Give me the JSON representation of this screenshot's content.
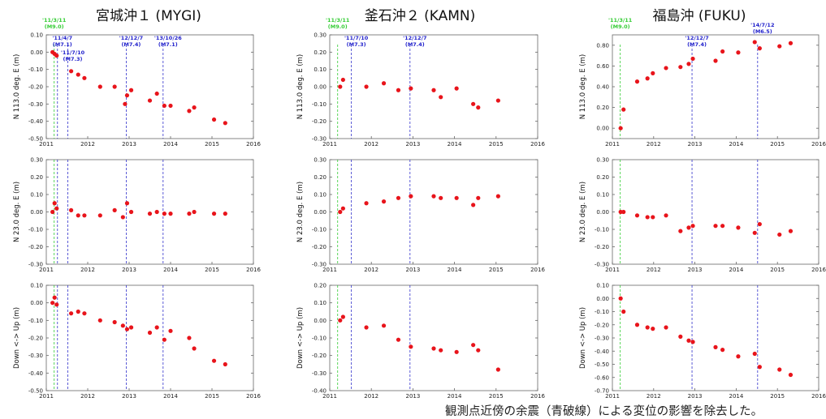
{
  "chart_data": [
    {
      "station": "宮城沖１ (MYGI)",
      "type": "scatter",
      "x_ticks": [
        "2011",
        "2012",
        "2013",
        "2014",
        "2015",
        "2016"
      ],
      "xlim": [
        2011,
        2016
      ],
      "marker_color": "#e8141b",
      "events": [
        {
          "x": 2011.19,
          "date": "'11/3/11",
          "mag": "(M9.0)",
          "color": "green"
        },
        {
          "x": 2011.27,
          "date": "'11/4/7",
          "mag": "(M7.1)",
          "color": "blue"
        },
        {
          "x": 2011.52,
          "date": "'11/7/10",
          "mag": "(M7.3)",
          "color": "blue"
        },
        {
          "x": 2012.93,
          "date": "'12/12/7",
          "mag": "(M7.4)",
          "color": "blue"
        },
        {
          "x": 2013.82,
          "date": "'13/10/26",
          "mag": "(M7.1)",
          "color": "blue"
        }
      ],
      "panels": [
        {
          "ylabel": "N 113.0 deg. E (m)",
          "ylim": [
            -0.5,
            0.1
          ],
          "y_ticks": [
            "0.10",
            "0.00",
            "-0.10",
            "-0.20",
            "-0.30",
            "-0.40",
            "-0.50"
          ],
          "points": [
            [
              2011.15,
              0.0
            ],
            [
              2011.2,
              -0.01
            ],
            [
              2011.25,
              -0.02
            ],
            [
              2011.6,
              -0.11
            ],
            [
              2011.77,
              -0.13
            ],
            [
              2011.92,
              -0.15
            ],
            [
              2012.3,
              -0.2
            ],
            [
              2012.65,
              -0.2
            ],
            [
              2012.9,
              -0.3
            ],
            [
              2012.95,
              -0.25
            ],
            [
              2013.05,
              -0.22
            ],
            [
              2013.5,
              -0.28
            ],
            [
              2013.67,
              -0.24
            ],
            [
              2013.85,
              -0.31
            ],
            [
              2014.0,
              -0.31
            ],
            [
              2014.45,
              -0.34
            ],
            [
              2014.57,
              -0.32
            ],
            [
              2015.05,
              -0.39
            ],
            [
              2015.32,
              -0.41
            ]
          ]
        },
        {
          "ylabel": "N 23.0 deg. E (m)",
          "ylim": [
            -0.3,
            0.3
          ],
          "y_ticks": [
            "0.30",
            "0.20",
            "0.10",
            "0.00",
            "-0.10",
            "-0.20",
            "-0.30"
          ],
          "points": [
            [
              2011.15,
              0.0
            ],
            [
              2011.2,
              0.05
            ],
            [
              2011.25,
              0.02
            ],
            [
              2011.6,
              0.01
            ],
            [
              2011.77,
              -0.02
            ],
            [
              2011.92,
              -0.02
            ],
            [
              2012.3,
              -0.02
            ],
            [
              2012.65,
              0.01
            ],
            [
              2012.85,
              -0.03
            ],
            [
              2012.95,
              0.05
            ],
            [
              2013.05,
              0.0
            ],
            [
              2013.5,
              -0.01
            ],
            [
              2013.67,
              0.0
            ],
            [
              2013.85,
              -0.01
            ],
            [
              2014.0,
              -0.01
            ],
            [
              2014.45,
              -0.01
            ],
            [
              2014.57,
              0.0
            ],
            [
              2015.05,
              -0.01
            ],
            [
              2015.32,
              -0.01
            ]
          ]
        },
        {
          "ylabel": "Down <-> Up (m)",
          "ylim": [
            -0.5,
            0.1
          ],
          "y_ticks": [
            "0.10",
            "0.00",
            "-0.10",
            "-0.20",
            "-0.30",
            "-0.40",
            "-0.50"
          ],
          "points": [
            [
              2011.15,
              0.0
            ],
            [
              2011.2,
              0.03
            ],
            [
              2011.25,
              -0.01
            ],
            [
              2011.6,
              -0.06
            ],
            [
              2011.77,
              -0.05
            ],
            [
              2011.92,
              -0.06
            ],
            [
              2012.3,
              -0.1
            ],
            [
              2012.65,
              -0.11
            ],
            [
              2012.85,
              -0.13
            ],
            [
              2012.95,
              -0.15
            ],
            [
              2013.05,
              -0.14
            ],
            [
              2013.5,
              -0.17
            ],
            [
              2013.67,
              -0.14
            ],
            [
              2013.85,
              -0.21
            ],
            [
              2014.0,
              -0.16
            ],
            [
              2014.45,
              -0.2
            ],
            [
              2014.57,
              -0.26
            ],
            [
              2015.05,
              -0.33
            ],
            [
              2015.32,
              -0.35
            ]
          ]
        }
      ]
    },
    {
      "station": "釜石沖２ (KAMN)",
      "type": "scatter",
      "x_ticks": [
        "2011",
        "2012",
        "2013",
        "2014",
        "2015",
        "2016"
      ],
      "xlim": [
        2011,
        2016
      ],
      "marker_color": "#e8141b",
      "events": [
        {
          "x": 2011.19,
          "date": "'11/3/11",
          "mag": "(M9.0)",
          "color": "green"
        },
        {
          "x": 2011.52,
          "date": "'11/7/10",
          "mag": "(M7.3)",
          "color": "blue"
        },
        {
          "x": 2012.93,
          "date": "'12/12/7",
          "mag": "(M7.4)",
          "color": "blue"
        }
      ],
      "panels": [
        {
          "ylabel": "N 113.0 deg. E (m)",
          "ylim": [
            -0.3,
            0.3
          ],
          "y_ticks": [
            "0.30",
            "0.20",
            "0.10",
            "0.00",
            "-0.10",
            "-0.20",
            "-0.30"
          ],
          "points": [
            [
              2011.25,
              0.0
            ],
            [
              2011.32,
              0.04
            ],
            [
              2011.88,
              0.0
            ],
            [
              2012.3,
              0.02
            ],
            [
              2012.65,
              -0.02
            ],
            [
              2012.95,
              -0.01
            ],
            [
              2013.5,
              -0.02
            ],
            [
              2013.67,
              -0.06
            ],
            [
              2014.05,
              -0.01
            ],
            [
              2014.45,
              -0.1
            ],
            [
              2014.57,
              -0.12
            ],
            [
              2015.05,
              -0.08
            ]
          ]
        },
        {
          "ylabel": "N 23.0 deg. E (m)",
          "ylim": [
            -0.3,
            0.3
          ],
          "y_ticks": [
            "0.30",
            "0.20",
            "0.10",
            "0.00",
            "-0.10",
            "-0.20",
            "-0.30"
          ],
          "points": [
            [
              2011.25,
              0.0
            ],
            [
              2011.32,
              0.02
            ],
            [
              2011.88,
              0.05
            ],
            [
              2012.3,
              0.06
            ],
            [
              2012.65,
              0.08
            ],
            [
              2012.95,
              0.09
            ],
            [
              2013.5,
              0.09
            ],
            [
              2013.67,
              0.08
            ],
            [
              2014.05,
              0.08
            ],
            [
              2014.45,
              0.04
            ],
            [
              2014.57,
              0.08
            ],
            [
              2015.05,
              0.09
            ]
          ]
        },
        {
          "ylabel": "Down <-> Up (m)",
          "ylim": [
            -0.4,
            0.2
          ],
          "y_ticks": [
            "0.20",
            "0.10",
            "0.00",
            "-0.10",
            "-0.20",
            "-0.30",
            "-0.40"
          ],
          "points": [
            [
              2011.25,
              0.0
            ],
            [
              2011.32,
              0.02
            ],
            [
              2011.88,
              -0.04
            ],
            [
              2012.3,
              -0.03
            ],
            [
              2012.65,
              -0.11
            ],
            [
              2012.95,
              -0.15
            ],
            [
              2013.5,
              -0.16
            ],
            [
              2013.67,
              -0.17
            ],
            [
              2014.05,
              -0.18
            ],
            [
              2014.45,
              -0.14
            ],
            [
              2014.57,
              -0.17
            ],
            [
              2015.05,
              -0.28
            ]
          ]
        }
      ]
    },
    {
      "station": "福島沖 (FUKU)",
      "type": "scatter",
      "x_ticks": [
        "2011",
        "2012",
        "2013",
        "2014",
        "2015",
        "2016"
      ],
      "xlim": [
        2011,
        2016
      ],
      "marker_color": "#e8141b",
      "events": [
        {
          "x": 2011.19,
          "date": "'11/3/11",
          "mag": "(M9.0)",
          "color": "green"
        },
        {
          "x": 2012.93,
          "date": "'12/12/7",
          "mag": "(M7.4)",
          "color": "blue"
        },
        {
          "x": 2014.52,
          "date": "'14/7/12",
          "mag": "(M6.5)",
          "color": "blue"
        }
      ],
      "panels": [
        {
          "ylabel": "N 113.0 deg. E (m)",
          "ylim": [
            -0.1,
            0.9
          ],
          "y_ticks": [
            "0.80",
            "0.60",
            "0.40",
            "0.20",
            "0.00"
          ],
          "y_tick_values": [
            0.8,
            0.6,
            0.4,
            0.2,
            0.0
          ],
          "points": [
            [
              2011.2,
              0.0
            ],
            [
              2011.27,
              0.18
            ],
            [
              2011.6,
              0.45
            ],
            [
              2011.85,
              0.48
            ],
            [
              2011.98,
              0.53
            ],
            [
              2012.3,
              0.58
            ],
            [
              2012.65,
              0.59
            ],
            [
              2012.85,
              0.62
            ],
            [
              2012.95,
              0.67
            ],
            [
              2013.5,
              0.65
            ],
            [
              2013.67,
              0.74
            ],
            [
              2014.05,
              0.73
            ],
            [
              2014.45,
              0.83
            ],
            [
              2014.57,
              0.77
            ],
            [
              2015.05,
              0.79
            ],
            [
              2015.32,
              0.82
            ]
          ]
        },
        {
          "ylabel": "N 23.0 deg. E (m)",
          "ylim": [
            -0.3,
            0.3
          ],
          "y_ticks": [
            "0.30",
            "0.20",
            "0.10",
            "0.00",
            "-0.10",
            "-0.20",
            "-0.30"
          ],
          "points": [
            [
              2011.2,
              0.0
            ],
            [
              2011.27,
              0.0
            ],
            [
              2011.6,
              -0.02
            ],
            [
              2011.85,
              -0.03
            ],
            [
              2011.98,
              -0.03
            ],
            [
              2012.3,
              -0.02
            ],
            [
              2012.65,
              -0.11
            ],
            [
              2012.85,
              -0.09
            ],
            [
              2012.95,
              -0.08
            ],
            [
              2013.5,
              -0.08
            ],
            [
              2013.67,
              -0.08
            ],
            [
              2014.05,
              -0.09
            ],
            [
              2014.45,
              -0.12
            ],
            [
              2014.57,
              -0.07
            ],
            [
              2015.05,
              -0.13
            ],
            [
              2015.32,
              -0.11
            ]
          ]
        },
        {
          "ylabel": "Down <-> Up (m)",
          "ylim": [
            -0.7,
            0.1
          ],
          "y_ticks": [
            "0.10",
            "0.00",
            "-0.10",
            "-0.20",
            "-0.30",
            "-0.40",
            "-0.50",
            "-0.60",
            "-0.70"
          ],
          "points": [
            [
              2011.2,
              0.0
            ],
            [
              2011.27,
              -0.1
            ],
            [
              2011.6,
              -0.2
            ],
            [
              2011.85,
              -0.22
            ],
            [
              2011.98,
              -0.23
            ],
            [
              2012.3,
              -0.22
            ],
            [
              2012.65,
              -0.29
            ],
            [
              2012.85,
              -0.32
            ],
            [
              2012.95,
              -0.33
            ],
            [
              2013.5,
              -0.37
            ],
            [
              2013.67,
              -0.39
            ],
            [
              2014.05,
              -0.44
            ],
            [
              2014.45,
              -0.42
            ],
            [
              2014.57,
              -0.52
            ],
            [
              2015.05,
              -0.54
            ],
            [
              2015.32,
              -0.58
            ]
          ]
        }
      ]
    }
  ],
  "footnote": "観測点近傍の余震（青破線）による変位の影響を除去した。",
  "colors": {
    "marker": "#e8141b",
    "green_line": "#33cc33",
    "blue_line": "#3333cc"
  }
}
